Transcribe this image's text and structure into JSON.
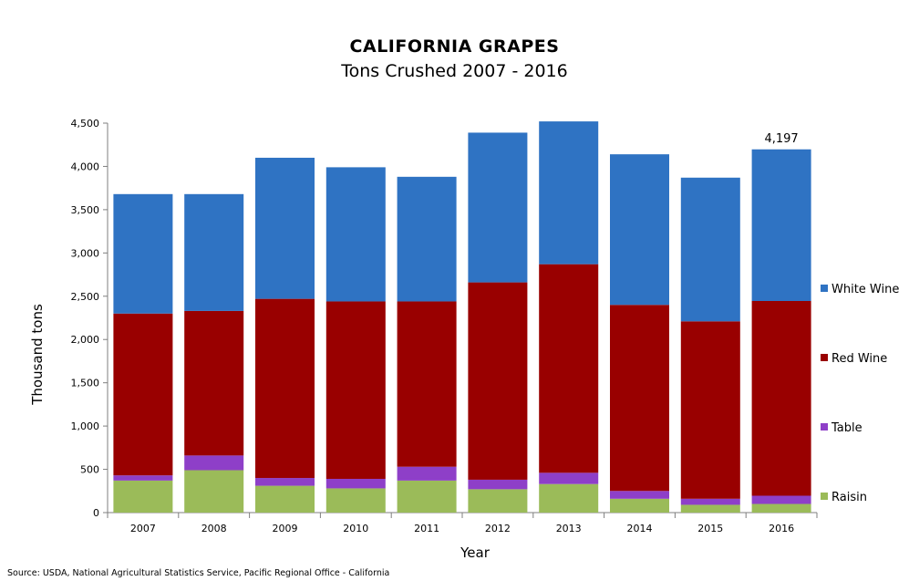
{
  "chart_data": {
    "type": "bar",
    "stacked": true,
    "title": "CALIFORNIA GRAPES",
    "subtitle": "Tons Crushed  2007 - 2016",
    "xlabel": "Year",
    "ylabel": "Thousand  tons",
    "ylim": [
      0,
      4500
    ],
    "yticks": [
      0,
      500,
      1000,
      1500,
      2000,
      2500,
      3000,
      3500,
      4000,
      4500
    ],
    "ytick_labels": [
      "0",
      "500",
      "1,000",
      "1,500",
      "2,000",
      "2,500",
      "3,000",
      "3,500",
      "4,000",
      "4,500"
    ],
    "categories": [
      "2007",
      "2008",
      "2009",
      "2010",
      "2011",
      "2012",
      "2013",
      "2014",
      "2015",
      "2016"
    ],
    "series": [
      {
        "name": "Raisin",
        "color": "#9bbb59",
        "values": [
          370,
          490,
          310,
          280,
          370,
          270,
          330,
          160,
          90,
          100
        ]
      },
      {
        "name": "Table",
        "color": "#8e3fc8",
        "values": [
          60,
          170,
          90,
          110,
          160,
          110,
          130,
          90,
          70,
          95
        ]
      },
      {
        "name": "Red Wine",
        "color": "#990000",
        "values": [
          1870,
          1670,
          2070,
          2050,
          1910,
          2280,
          2410,
          2150,
          2050,
          2250
        ]
      },
      {
        "name": "White Wine",
        "color": "#2f73c3",
        "values": [
          1380,
          1350,
          1630,
          1550,
          1440,
          1730,
          1650,
          1740,
          1660,
          1752
        ]
      }
    ],
    "annotations": [
      {
        "category": "2016",
        "text": "4,197"
      }
    ],
    "legend": "right",
    "grid": false
  },
  "source": "Source: USDA, National Agricultural Statistics Service, Pacific Regional Office - California"
}
